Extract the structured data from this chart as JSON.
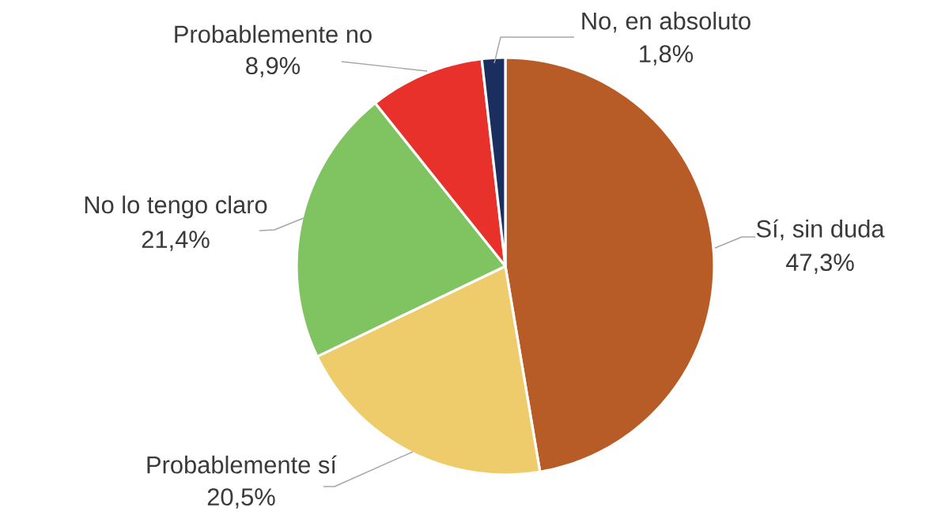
{
  "chart_data": {
    "type": "pie",
    "categories": [
      "Sí, sin duda",
      "Probablemente sí",
      "No lo tengo claro",
      "Probablemente no",
      "No, en absoluto"
    ],
    "values": [
      47.3,
      20.5,
      21.4,
      8.9,
      1.8
    ],
    "colors": [
      "#b85c27",
      "#efcc6b",
      "#80c462",
      "#e8312b",
      "#1b2f5e"
    ],
    "value_labels": [
      "47,3%",
      "20,5%",
      "21,4%",
      "8,9%",
      "1,8%"
    ]
  }
}
